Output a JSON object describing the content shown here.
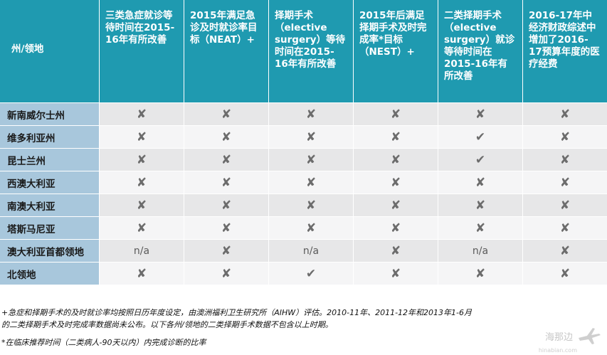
{
  "table": {
    "headers": [
      "州/领地",
      "三类急症就诊等待时间在2015-16年有所改善",
      "2015年满足急诊及时就诊率目标（NEAT）+",
      "择期手术（elective surgery）等待时间在2015-16年有所改善",
      "2015年后满足择期手术及时完成率*目标（NEST）+",
      "二类择期手术（elective surgery）就诊等待时间在2015-16年有所改善",
      "2016-17年中经济财政综述中增加了2016-17预算年度的医疗经费"
    ],
    "rows": [
      {
        "label": "新南威尔士州",
        "cells": [
          "✘",
          "✘",
          "✘",
          "✘",
          "✘",
          "✘"
        ]
      },
      {
        "label": "维多利亚州",
        "cells": [
          "✘",
          "✘",
          "✘",
          "✘",
          "✔",
          "✘"
        ]
      },
      {
        "label": "昆士兰州",
        "cells": [
          "✘",
          "✘",
          "✘",
          "✘",
          "✔",
          "✘"
        ]
      },
      {
        "label": "西澳大利亚",
        "cells": [
          "✘",
          "✘",
          "✘",
          "✘",
          "✘",
          "✘"
        ]
      },
      {
        "label": "南澳大利亚",
        "cells": [
          "✘",
          "✘",
          "✘",
          "✘",
          "✘",
          "✘"
        ]
      },
      {
        "label": "塔斯马尼亚",
        "cells": [
          "✘",
          "✘",
          "✘",
          "✘",
          "✘",
          "✘"
        ]
      },
      {
        "label": "澳大利亚首都领地",
        "cells": [
          "n/a",
          "✘",
          "n/a",
          "✘",
          "n/a",
          "✘"
        ]
      },
      {
        "label": "北领地",
        "cells": [
          "✘",
          "✘",
          "✔",
          "✘",
          "✘",
          "✘"
        ]
      }
    ]
  },
  "notes": {
    "line1": "+急症和择期手术的及时就诊率均按照日历年度设定，由澳洲福利卫生研究所（AIHW）评估。2010-11年、2011-12年和2013年1-6月",
    "line2": "的二类择期手术及时完成率数据尚未公布。以下各州/领地的二类择期手术数据不包含以上时期。",
    "line3": "*在临床推荐时间（二类病人-90天以内）内完成诊断的比率"
  },
  "watermark": {
    "name": "海那边",
    "domain": "hinabian.com",
    "icon": "airplane-icon"
  }
}
